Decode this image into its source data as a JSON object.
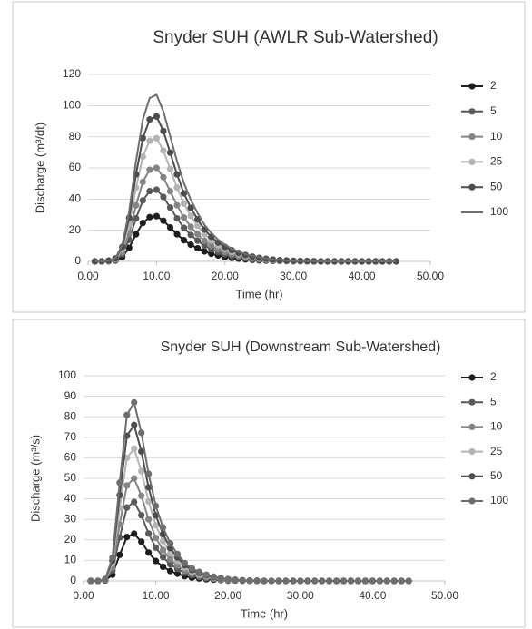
{
  "chart_data": [
    {
      "type": "line",
      "title": "Snyder SUH (AWLR Sub-Watershed)",
      "x_label": "Time (hr)",
      "y_label": "Discharge  (m³/dt)",
      "x": [
        1,
        2,
        3,
        4,
        5,
        6,
        7,
        8,
        9,
        10,
        11,
        12,
        13,
        14,
        15,
        16,
        17,
        18,
        19,
        20,
        21,
        22,
        23,
        24,
        25,
        26,
        27,
        28,
        29,
        30,
        31,
        32,
        33,
        34,
        35,
        36,
        37,
        38,
        39,
        40,
        41,
        42,
        43,
        44,
        45
      ],
      "xlim": [
        0,
        50
      ],
      "ylim": [
        0,
        120
      ],
      "xticks": [
        {
          "value": 0,
          "label": "0.00"
        },
        {
          "value": 10,
          "label": "10.00"
        },
        {
          "value": 20,
          "label": "20.00"
        },
        {
          "value": 30,
          "label": "30.00"
        },
        {
          "value": 40,
          "label": "40.00"
        },
        {
          "value": 50,
          "label": "50.00"
        }
      ],
      "yticks": [
        0,
        20,
        40,
        60,
        80,
        100,
        120
      ],
      "grid": true,
      "series": [
        {
          "name": "2",
          "color": "#1e1e1e",
          "marker": true,
          "values": [
            0,
            0,
            0.1,
            0.6,
            2.9,
            8.7,
            17.4,
            24.7,
            28.4,
            29,
            26.1,
            21.8,
            17.4,
            13.6,
            10.7,
            8.4,
            6.4,
            4.9,
            3.8,
            2.9,
            2.2,
            1.7,
            1.3,
            1,
            0.7,
            0.5,
            0.4,
            0.3,
            0.2,
            0.1,
            0.1,
            0.1,
            0,
            0,
            0,
            0,
            0,
            0,
            0,
            0,
            0,
            0,
            0,
            0,
            0
          ]
        },
        {
          "name": "5",
          "color": "#5a5a5a",
          "marker": true,
          "values": [
            0,
            0,
            0.2,
            0.9,
            4.6,
            13.8,
            27.6,
            39.1,
            45.1,
            46,
            41.4,
            34.5,
            27.6,
            21.6,
            17,
            13.3,
            10.1,
            7.8,
            6,
            4.6,
            3.5,
            2.7,
            2,
            1.5,
            1.2,
            0.8,
            0.6,
            0.4,
            0.3,
            0.2,
            0.1,
            0.1,
            0,
            0,
            0,
            0,
            0,
            0,
            0,
            0,
            0,
            0,
            0,
            0,
            0
          ]
        },
        {
          "name": "10",
          "color": "#858585",
          "marker": true,
          "values": [
            0,
            0,
            0.3,
            1.2,
            6,
            18,
            36,
            51,
            58.8,
            60,
            54,
            45,
            36,
            28.2,
            22.2,
            17.4,
            13.2,
            10.2,
            7.8,
            6,
            4.6,
            3.5,
            2.6,
            2,
            1.5,
            1.1,
            0.8,
            0.5,
            0.4,
            0.2,
            0.2,
            0.1,
            0.1,
            0,
            0,
            0,
            0,
            0,
            0,
            0,
            0,
            0,
            0,
            0,
            0
          ]
        },
        {
          "name": "25",
          "color": "#b4b4b4",
          "marker": true,
          "values": [
            0,
            0,
            0.4,
            1.6,
            7.9,
            23.7,
            47.4,
            67.2,
            77.4,
            79,
            71.1,
            59.3,
            47.4,
            37.1,
            29.2,
            22.9,
            17.4,
            13.4,
            10.3,
            7.9,
            6.1,
            4.6,
            3.5,
            2.6,
            2,
            1.4,
            1,
            0.7,
            0.5,
            0.3,
            0.2,
            0.2,
            0.1,
            0,
            0,
            0,
            0,
            0,
            0,
            0,
            0,
            0,
            0,
            0,
            0
          ]
        },
        {
          "name": "50",
          "color": "#4d4d4d",
          "marker": true,
          "values": [
            0,
            0,
            0.5,
            1.9,
            9.3,
            27.9,
            55.8,
            79.1,
            91.1,
            93,
            83.7,
            69.8,
            55.8,
            43.7,
            34.4,
            27,
            20.5,
            15.8,
            12.1,
            9.3,
            7.2,
            5.4,
            4.1,
            3.1,
            2.3,
            1.7,
            1.2,
            0.8,
            0.6,
            0.4,
            0.3,
            0.2,
            0.1,
            0,
            0,
            0,
            0,
            0,
            0,
            0,
            0,
            0,
            0,
            0,
            0
          ]
        },
        {
          "name": "100",
          "color": "#6e6e6e",
          "marker": false,
          "values": [
            0,
            0,
            0.5,
            2.1,
            10.7,
            32.1,
            64.2,
            91,
            104.9,
            107,
            96.3,
            80.3,
            64.2,
            50.3,
            39.6,
            31,
            23.5,
            18.2,
            13.9,
            10.7,
            8.2,
            6.2,
            4.7,
            3.5,
            2.7,
            1.9,
            1.4,
            1,
            0.6,
            0.4,
            0.3,
            0.2,
            0.1,
            0,
            0,
            0,
            0,
            0,
            0,
            0,
            0,
            0,
            0,
            0,
            0
          ]
        }
      ]
    },
    {
      "type": "line",
      "title": "Snyder SUH (Downstream Sub-Watershed)",
      "x_label": "Time (hr)",
      "y_label": "Discharge (m³/s)",
      "x": [
        1,
        2,
        3,
        4,
        5,
        6,
        7,
        8,
        9,
        10,
        11,
        12,
        13,
        14,
        15,
        16,
        17,
        18,
        19,
        20,
        21,
        22,
        23,
        24,
        25,
        26,
        27,
        28,
        29,
        30,
        31,
        32,
        33,
        34,
        35,
        36,
        37,
        38,
        39,
        40,
        41,
        42,
        43,
        44,
        45
      ],
      "xlim": [
        0,
        50
      ],
      "ylim": [
        0,
        100
      ],
      "xticks": [
        {
          "value": 0,
          "label": "0.00"
        },
        {
          "value": 10,
          "label": "10.00"
        },
        {
          "value": 20,
          "label": "20.00"
        },
        {
          "value": 30,
          "label": "30.00"
        },
        {
          "value": 40,
          "label": "40.00"
        },
        {
          "value": 50,
          "label": "50.00"
        }
      ],
      "yticks": [
        0,
        10,
        20,
        30,
        40,
        50,
        60,
        70,
        80,
        90,
        100
      ],
      "grid": true,
      "series": [
        {
          "name": "2",
          "color": "#1e1e1e",
          "marker": true,
          "values": [
            0,
            0,
            0.2,
            3,
            12.7,
            21.4,
            23,
            19.1,
            13.8,
            9.7,
            6.9,
            4.8,
            3.5,
            2.3,
            1.6,
            1.2,
            0.8,
            0.6,
            0.4,
            0.2,
            0.2,
            0.1,
            0,
            0,
            0,
            0,
            0,
            0,
            0,
            0,
            0,
            0,
            0,
            0,
            0,
            0,
            0,
            0,
            0,
            0,
            0,
            0,
            0,
            0,
            0
          ]
        },
        {
          "name": "5",
          "color": "#5a5a5a",
          "marker": true,
          "values": [
            0,
            0,
            0.4,
            5,
            21.2,
            35.8,
            38.5,
            32,
            23.1,
            16.2,
            11.6,
            8.1,
            5.8,
            3.9,
            2.7,
            1.9,
            1.3,
            0.9,
            0.6,
            0.4,
            0.3,
            0.2,
            0.1,
            0,
            0,
            0,
            0,
            0,
            0,
            0,
            0,
            0,
            0,
            0,
            0,
            0,
            0,
            0,
            0,
            0,
            0,
            0,
            0,
            0,
            0
          ]
        },
        {
          "name": "10",
          "color": "#858585",
          "marker": true,
          "values": [
            0,
            0,
            0.5,
            6.5,
            27.5,
            46.5,
            50,
            41.5,
            30,
            21,
            15,
            10.5,
            7.5,
            5,
            3.5,
            2.5,
            1.8,
            1.2,
            0.8,
            0.5,
            0.4,
            0.2,
            0.1,
            0.1,
            0,
            0,
            0,
            0,
            0,
            0,
            0,
            0,
            0,
            0,
            0,
            0,
            0,
            0,
            0,
            0,
            0,
            0,
            0,
            0,
            0
          ]
        },
        {
          "name": "25",
          "color": "#b4b4b4",
          "marker": true,
          "values": [
            0,
            0,
            0.6,
            8.4,
            35.5,
            60,
            64.5,
            53.5,
            38.7,
            27.1,
            19.4,
            13.5,
            9.7,
            6.5,
            4.5,
            3.2,
            2.3,
            1.5,
            1,
            0.6,
            0.5,
            0.3,
            0.1,
            0.1,
            0,
            0,
            0,
            0,
            0,
            0,
            0,
            0,
            0,
            0,
            0,
            0,
            0,
            0,
            0,
            0,
            0,
            0,
            0,
            0,
            0
          ]
        },
        {
          "name": "50",
          "color": "#4d4d4d",
          "marker": true,
          "values": [
            0,
            0,
            0.8,
            9.9,
            41.8,
            70.7,
            76,
            63.1,
            45.6,
            31.9,
            22.8,
            16,
            11.4,
            7.6,
            5.3,
            3.8,
            2.7,
            1.8,
            1.2,
            0.8,
            0.5,
            0.3,
            0.2,
            0.1,
            0,
            0,
            0,
            0,
            0,
            0,
            0,
            0,
            0,
            0,
            0,
            0,
            0,
            0,
            0,
            0,
            0,
            0,
            0,
            0,
            0
          ]
        },
        {
          "name": "100",
          "color": "#6e6e6e",
          "marker": true,
          "values": [
            0,
            0,
            0.9,
            11.3,
            47.9,
            80.9,
            87,
            72.2,
            52.2,
            36.5,
            26.1,
            18.3,
            13.1,
            8.7,
            6.1,
            4.4,
            3,
            2.1,
            1.4,
            0.9,
            0.6,
            0.3,
            0.2,
            0.1,
            0,
            0,
            0,
            0,
            0,
            0,
            0,
            0,
            0,
            0,
            0,
            0,
            0,
            0,
            0,
            0,
            0,
            0,
            0,
            0,
            0
          ]
        }
      ]
    }
  ]
}
